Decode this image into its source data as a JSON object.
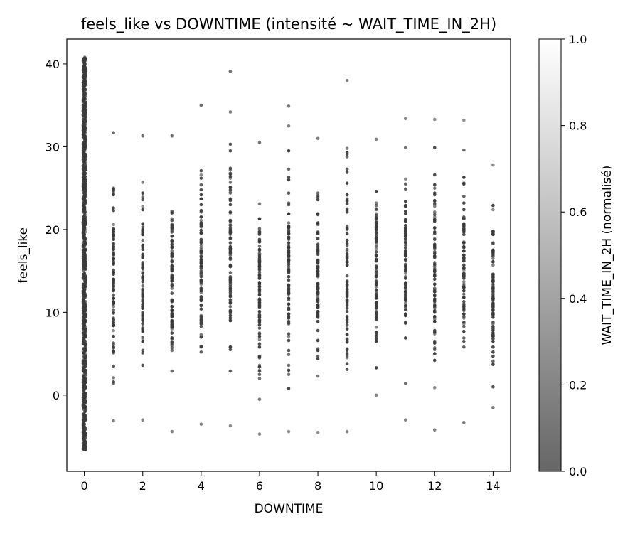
{
  "chart_data": {
    "type": "scatter",
    "title": "feels_like vs DOWNTIME (intensité ~ WAIT_TIME_IN_2H)",
    "xlabel": "DOWNTIME",
    "ylabel": "feels_like",
    "xlim": [
      -0.6,
      14.6
    ],
    "ylim": [
      -9.2,
      43.0
    ],
    "xticks": [
      0,
      2,
      4,
      6,
      8,
      10,
      12,
      14
    ],
    "yticks": [
      0,
      10,
      20,
      30,
      40
    ],
    "grid": false,
    "marker_color": "#3a3a3a",
    "colorbar": {
      "label": "WAIT_TIME_IN_2H (normalisé)",
      "range": [
        0.0,
        1.0
      ],
      "ticks": [
        "0.0",
        "0.2",
        "0.4",
        "0.6",
        "0.8",
        "1.0"
      ],
      "color_low": "#666666",
      "color_high": "#ffffff"
    },
    "columns": [
      {
        "x": 0,
        "min": -6.6,
        "max": 40.8
      },
      {
        "x": 1,
        "min": -3.1,
        "max": 31.7
      },
      {
        "x": 2,
        "min": -3.0,
        "max": 31.3
      },
      {
        "x": 3,
        "min": -4.4,
        "max": 31.3
      },
      {
        "x": 4,
        "min": -3.5,
        "max": 35.0
      },
      {
        "x": 5,
        "min": -3.7,
        "max": 39.1
      },
      {
        "x": 6,
        "min": -4.7,
        "max": 30.5
      },
      {
        "x": 7,
        "min": -4.4,
        "max": 34.9
      },
      {
        "x": 8,
        "min": -4.5,
        "max": 31.0
      },
      {
        "x": 9,
        "min": -4.4,
        "max": 38.0
      },
      {
        "x": 10,
        "min": 0.0,
        "max": 30.9
      },
      {
        "x": 11,
        "min": -3.0,
        "max": 33.4
      },
      {
        "x": 12,
        "min": -4.2,
        "max": 33.3
      },
      {
        "x": 13,
        "min": -3.3,
        "max": 33.2
      },
      {
        "x": 14,
        "min": -1.5,
        "max": 27.8
      }
    ],
    "points": []
  }
}
